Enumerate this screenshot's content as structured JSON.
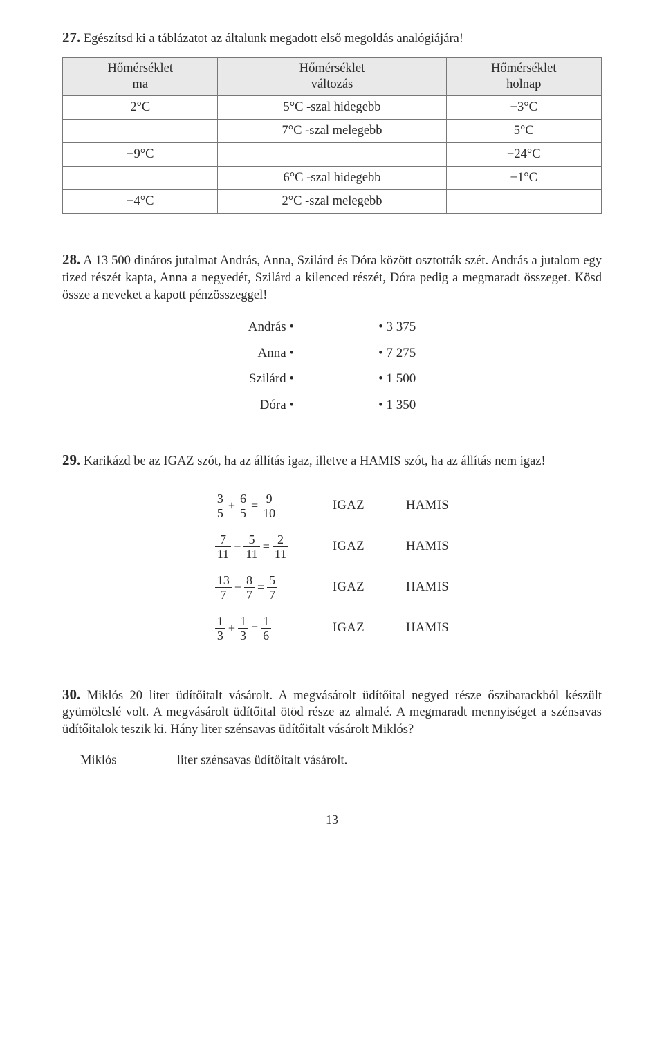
{
  "t27": {
    "num": "27.",
    "prompt": "Egészítsd ki a táblázatot az általunk megadott első megoldás analógiájára!",
    "headers": [
      "Hőmérséklet\nma",
      "Hőmérséklet\nváltozás",
      "Hőmérséklet\nholnap"
    ],
    "rows": [
      [
        "2°C",
        "5°C -szal hidegebb",
        "−3°C"
      ],
      [
        "",
        "7°C -szal melegebb",
        "5°C"
      ],
      [
        "−9°C",
        "",
        "−24°C"
      ],
      [
        "",
        "6°C -szal hidegebb",
        "−1°C"
      ],
      [
        "−4°C",
        "2°C -szal melegebb",
        ""
      ]
    ]
  },
  "t28": {
    "num": "28.",
    "prompt": "A 13 500 dináros jutalmat András, Anna, Szilárd és Dóra között osztották szét. András a jutalom egy tized részét kapta, Anna a negyedét, Szilárd a kilenced részét, Dóra pedig a megmaradt összeget. Kösd össze a neveket a kapott pénzösszeggel!",
    "left": [
      "András",
      "Anna",
      "Szilárd",
      "Dóra"
    ],
    "right": [
      "3 375",
      "7 275",
      "1 500",
      "1 350"
    ]
  },
  "t29": {
    "num": "29.",
    "prompt": "Karikázd be az IGAZ szót, ha az állítás igaz, illetve a HAMIS szót, ha az állítás nem igaz!",
    "true_label": "IGAZ",
    "false_label": "HAMIS",
    "eqs": [
      {
        "a_n": "3",
        "a_d": "5",
        "op": "+",
        "b_n": "6",
        "b_d": "5",
        "c_n": "9",
        "c_d": "10"
      },
      {
        "a_n": "7",
        "a_d": "11",
        "op": "−",
        "b_n": "5",
        "b_d": "11",
        "c_n": "2",
        "c_d": "11"
      },
      {
        "a_n": "13",
        "a_d": "7",
        "op": "−",
        "b_n": "8",
        "b_d": "7",
        "c_n": "5",
        "c_d": "7"
      },
      {
        "a_n": "1",
        "a_d": "3",
        "op": "+",
        "b_n": "1",
        "b_d": "3",
        "c_n": "1",
        "c_d": "6"
      }
    ]
  },
  "t30": {
    "num": "30.",
    "prompt": "Miklós 20 liter üdítőitalt vásárolt. A megvásárolt üdítőital negyed része őszibarackból készült gyümölcslé volt. A megvásárolt üdítőital ötöd része az almalé. A megmaradt mennyiséget a szénsavas üdítőitalok teszik ki. Hány liter szénsavas üdítőitalt vásárolt Miklós?",
    "answer_before": "Miklós",
    "answer_after": "liter szénsavas üdítőitalt vásárolt."
  },
  "page_num": "13"
}
